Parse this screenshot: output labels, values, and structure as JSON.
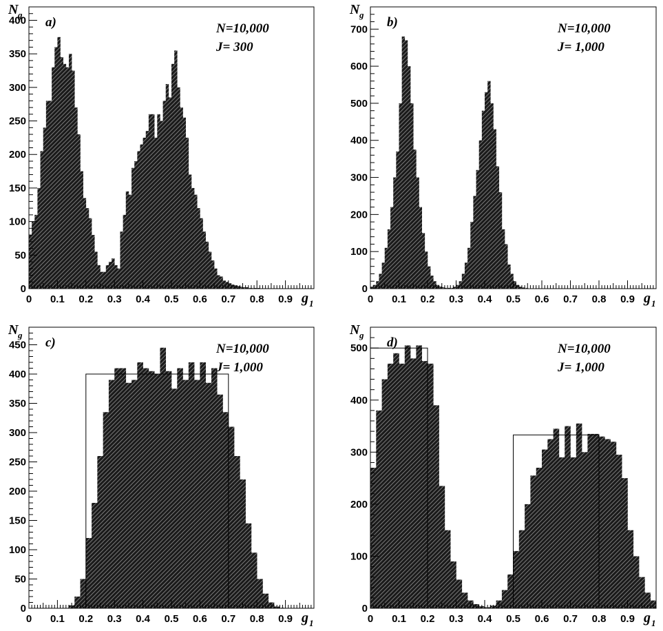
{
  "figure": {
    "fill_color": "#1a1a1a",
    "hatch_color": "#7a7a7a",
    "line_color": "#000000"
  },
  "chart_data": [
    {
      "type": "bar",
      "panel_label": "a)",
      "annotations": [
        "N=10,000",
        "J= 300"
      ],
      "ylabel": "N",
      "ylabel_sub": "g",
      "xlabel": "g",
      "xlabel_sub": "1",
      "xlim": [
        0,
        1
      ],
      "ylim": [
        0,
        420
      ],
      "xticks": [
        "0",
        "0.1",
        "0.2",
        "0.3",
        "0.4",
        "0.5",
        "0.6",
        "0.7",
        "0.8",
        "0.9"
      ],
      "yticks": [
        0,
        50,
        100,
        150,
        200,
        250,
        300,
        350,
        400
      ],
      "bin_width": 0.01,
      "values": [
        80,
        100,
        110,
        150,
        205,
        240,
        280,
        280,
        330,
        360,
        375,
        345,
        335,
        330,
        350,
        325,
        270,
        230,
        175,
        135,
        120,
        105,
        80,
        55,
        35,
        25,
        25,
        35,
        40,
        45,
        35,
        30,
        85,
        110,
        145,
        140,
        180,
        190,
        205,
        215,
        225,
        235,
        260,
        260,
        225,
        260,
        250,
        280,
        305,
        285,
        335,
        355,
        300,
        270,
        255,
        225,
        170,
        150,
        140,
        120,
        105,
        85,
        70,
        55,
        42,
        30,
        20,
        18,
        12,
        10,
        8,
        6,
        5,
        4,
        3,
        2,
        2,
        1,
        1,
        1,
        1,
        0,
        0,
        0,
        0,
        0,
        0,
        0,
        0,
        0,
        0,
        0,
        0,
        0,
        0,
        0,
        0,
        0,
        0,
        0
      ],
      "overlay_boxes": []
    },
    {
      "type": "bar",
      "panel_label": "b)",
      "annotations": [
        "N=10,000",
        "J= 1,000"
      ],
      "ylabel": "N",
      "ylabel_sub": "g",
      "xlabel": "g",
      "xlabel_sub": "1",
      "xlim": [
        0,
        1
      ],
      "ylim": [
        0,
        760
      ],
      "xticks": [
        "0",
        "0.1",
        "0.2",
        "0.3",
        "0.4",
        "0.5",
        "0.6",
        "0.7",
        "0.8",
        "0.9"
      ],
      "yticks": [
        0,
        100,
        200,
        300,
        400,
        500,
        600,
        700
      ],
      "bin_width": 0.01,
      "values": [
        5,
        10,
        20,
        40,
        70,
        110,
        160,
        220,
        300,
        370,
        500,
        680,
        670,
        600,
        500,
        375,
        300,
        220,
        150,
        100,
        60,
        35,
        20,
        10,
        6,
        4,
        2,
        2,
        2,
        5,
        10,
        20,
        40,
        70,
        110,
        180,
        250,
        320,
        400,
        480,
        530,
        560,
        500,
        430,
        330,
        260,
        160,
        120,
        65,
        40,
        20,
        10,
        5,
        3,
        2,
        1,
        1,
        1,
        0,
        0,
        0,
        0,
        0,
        0,
        0,
        0,
        0,
        0,
        0,
        0,
        0,
        0,
        0,
        0,
        0,
        0,
        0,
        0,
        0,
        0,
        0,
        0,
        0,
        0,
        0,
        0,
        0,
        0,
        0,
        0,
        0,
        0,
        0,
        0,
        0,
        0,
        0,
        0,
        0,
        0
      ],
      "overlay_boxes": []
    },
    {
      "type": "bar",
      "panel_label": "c)",
      "annotations": [
        "N=10,000",
        "J= 1,000"
      ],
      "ylabel": "N",
      "ylabel_sub": "g",
      "xlabel": "g",
      "xlabel_sub": "1",
      "xlim": [
        0,
        1
      ],
      "ylim": [
        0,
        480
      ],
      "xticks": [
        "0",
        "0.1",
        "0.2",
        "0.3",
        "0.4",
        "0.5",
        "0.6",
        "0.7",
        "0.8",
        "0.9"
      ],
      "yticks": [
        0,
        50,
        100,
        150,
        200,
        250,
        300,
        350,
        400,
        450
      ],
      "bin_width": 0.02,
      "values": [
        0,
        0,
        0,
        0,
        0,
        0,
        0,
        5,
        20,
        50,
        120,
        180,
        260,
        335,
        390,
        410,
        410,
        385,
        390,
        420,
        410,
        405,
        400,
        445,
        405,
        375,
        410,
        390,
        420,
        390,
        420,
        385,
        410,
        365,
        335,
        310,
        260,
        220,
        145,
        95,
        50,
        25,
        10,
        3,
        1,
        0,
        0,
        0,
        0,
        0
      ],
      "overlay_boxes": [
        {
          "x0": 0.2,
          "x1": 0.7,
          "height": 400
        }
      ]
    },
    {
      "type": "bar",
      "panel_label": "d)",
      "annotations": [
        "N=10,000",
        "J= 1,000"
      ],
      "ylabel": "N",
      "ylabel_sub": "g",
      "xlabel": "g",
      "xlabel_sub": "1",
      "xlim": [
        0,
        1
      ],
      "ylim": [
        0,
        540
      ],
      "xticks": [
        "0",
        "0.1",
        "0.2",
        "0.3",
        "0.4",
        "0.5",
        "0.6",
        "0.7",
        "0.8",
        "0.9"
      ],
      "yticks": [
        0,
        100,
        200,
        300,
        400,
        500
      ],
      "bin_width": 0.02,
      "values": [
        270,
        380,
        440,
        470,
        490,
        470,
        505,
        480,
        505,
        475,
        470,
        390,
        235,
        150,
        90,
        55,
        30,
        15,
        8,
        4,
        2,
        5,
        15,
        35,
        65,
        110,
        150,
        200,
        255,
        270,
        305,
        325,
        345,
        290,
        350,
        290,
        355,
        300,
        335,
        335,
        330,
        325,
        320,
        295,
        250,
        150,
        100,
        60,
        30,
        15
      ],
      "overlay_boxes": [
        {
          "x0": 0.0,
          "x1": 0.2,
          "height": 500
        },
        {
          "x0": 0.5,
          "x1": 0.8,
          "height": 333
        }
      ]
    }
  ]
}
